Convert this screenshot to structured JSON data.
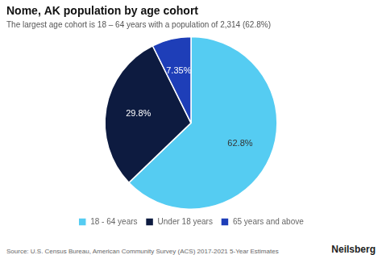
{
  "chart_data": {
    "type": "pie",
    "title": "Nome, AK population by age cohort",
    "subtitle": "The largest age cohort is 18 – 64 years with a population of 2,314 (62.8%)",
    "categories": [
      "18 - 64 years",
      "Under 18 years",
      "65 years and above"
    ],
    "values": [
      62.8,
      29.8,
      7.35
    ],
    "value_labels": [
      "62.8%",
      "29.8%",
      "7.35%"
    ],
    "data_labels": true,
    "colors": [
      "#55ccf2",
      "#0d1b40",
      "#1e3eb8"
    ],
    "legend": "bottom",
    "annotations": [
      "Source: U.S. Census Bureau, American Community Survey (ACS) 2017-2021 5-Year Estimates",
      "Neilsberg"
    ]
  }
}
